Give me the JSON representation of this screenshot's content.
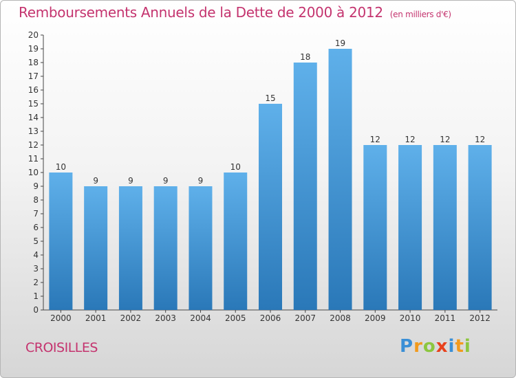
{
  "title": "Remboursements Annuels de la Dette de 2000 à 2012",
  "unit": "(en milliers d'€)",
  "city": "CROISILLES",
  "logo": {
    "letters": [
      "P",
      "r",
      "o",
      "x",
      "i",
      "t",
      "i"
    ],
    "colors": [
      "#3a8fd6",
      "#f29a1d",
      "#8cc63f",
      "#e8411c",
      "#3a8fd6",
      "#f29a1d",
      "#8cc63f"
    ]
  },
  "colors": {
    "bar_top": "#5fb0ea",
    "bar_bottom": "#2a78b8",
    "accent": "#c4336e"
  },
  "chart_data": {
    "type": "bar",
    "categories": [
      "2000",
      "2001",
      "2002",
      "2003",
      "2004",
      "2005",
      "2006",
      "2007",
      "2008",
      "2009",
      "2010",
      "2011",
      "2012"
    ],
    "values": [
      10,
      9,
      9,
      9,
      9,
      10,
      15,
      18,
      19,
      12,
      12,
      12,
      12
    ],
    "title": "Remboursements Annuels de la Dette de 2000 à 2012",
    "xlabel": "",
    "ylabel": "",
    "ylim": [
      0,
      20
    ],
    "yticks": [
      0,
      1,
      2,
      3,
      4,
      5,
      6,
      7,
      8,
      9,
      10,
      11,
      12,
      13,
      14,
      15,
      16,
      17,
      18,
      19,
      20
    ],
    "data_labels": true,
    "grid": false,
    "legend": "none"
  }
}
